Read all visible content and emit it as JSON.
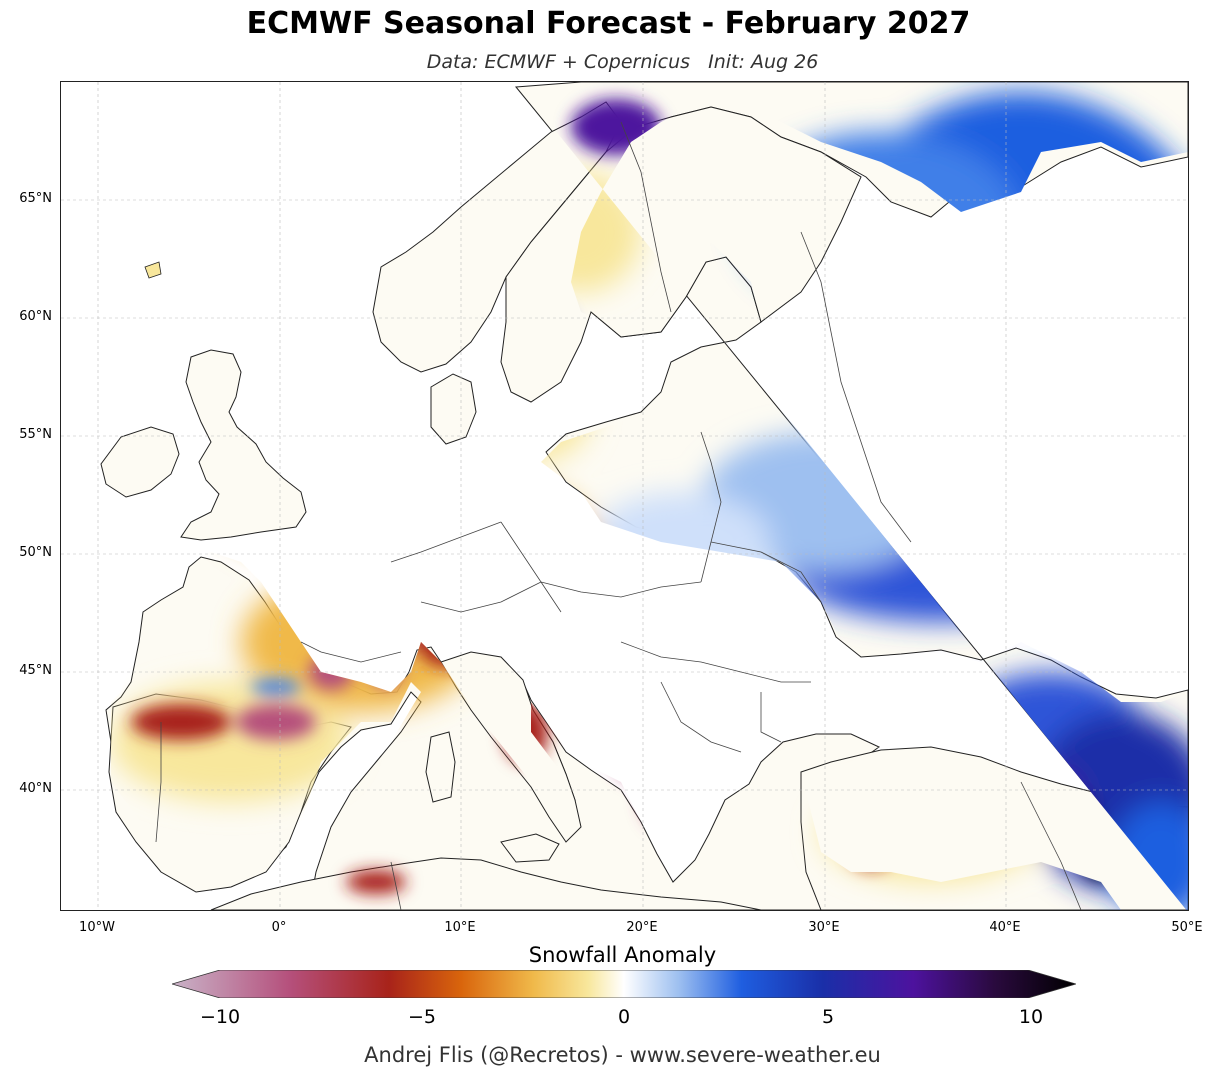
{
  "header": {
    "title": "ECMWF Seasonal Forecast - February 2027",
    "subtitle": "Data: ECMWF + Copernicus   Init: Aug 26"
  },
  "map": {
    "latitude_labels": [
      "65°N",
      "60°N",
      "55°N",
      "50°N",
      "45°N",
      "40°N"
    ],
    "longitude_labels": [
      "10°W",
      "0°",
      "10°E",
      "20°E",
      "30°E",
      "40°E",
      "50°E"
    ],
    "colors": {
      "land_neutral": "#fdfbf3",
      "sea": "#ffffff",
      "coastline": "#222222",
      "border": "#555555"
    }
  },
  "colorbar": {
    "title": "Snowfall Anomaly",
    "ticks": [
      "−10",
      "−5",
      "0",
      "5",
      "10"
    ],
    "colors": [
      "#c9b3c8",
      "#b5507c",
      "#a8231a",
      "#d9650c",
      "#f0b94a",
      "#f8e79c",
      "#ffffff",
      "#9ec0f0",
      "#1f5ee0",
      "#1a2fa8",
      "#4d129e",
      "#2a0a3e",
      "#000000"
    ]
  },
  "footer": {
    "credit": "Andrej Flis (@Recretos) - www.severe-weather.eu"
  }
}
